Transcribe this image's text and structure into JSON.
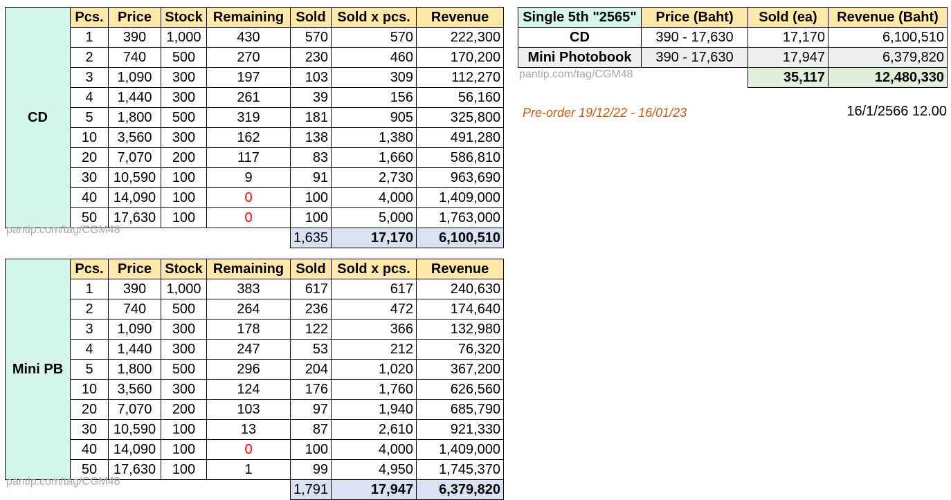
{
  "watermark": "pantip.com/tag/CGM48",
  "preorder_note": "Pre-order 19/12/22 - 16/01/23",
  "timestamp": "16/1/2566 12.00",
  "colors": {
    "header_bg": "#ffe8a9",
    "mint_bg": "#d5f6e8",
    "totals_bg": "#d9e1f2",
    "summary_totals_bg": "#e2efda",
    "gray_row_bg": "#efefef",
    "red_text": "#ff0000",
    "preorder_text": "#c55a11",
    "watermark_text": "#a9a9a9"
  },
  "detail_columns": [
    "Pcs.",
    "Price",
    "Stock",
    "Remaining",
    "Sold",
    "Sold x pcs.",
    "Revenue"
  ],
  "detail_tables": [
    {
      "label": "CD",
      "rows": [
        [
          "1",
          "390",
          "1,000",
          "430",
          "570",
          "570",
          "222,300"
        ],
        [
          "2",
          "740",
          "500",
          "270",
          "230",
          "460",
          "170,200"
        ],
        [
          "3",
          "1,090",
          "300",
          "197",
          "103",
          "309",
          "112,270"
        ],
        [
          "4",
          "1,440",
          "300",
          "261",
          "39",
          "156",
          "56,160"
        ],
        [
          "5",
          "1,800",
          "500",
          "319",
          "181",
          "905",
          "325,800"
        ],
        [
          "10",
          "3,560",
          "300",
          "162",
          "138",
          "1,380",
          "491,280"
        ],
        [
          "20",
          "7,070",
          "200",
          "117",
          "83",
          "1,660",
          "586,810"
        ],
        [
          "30",
          "10,590",
          "100",
          "9",
          "91",
          "2,730",
          "963,690"
        ],
        [
          "40",
          "14,090",
          "100",
          "0",
          "100",
          "4,000",
          "1,409,000"
        ],
        [
          "50",
          "17,630",
          "100",
          "0",
          "100",
          "5,000",
          "1,763,000"
        ]
      ],
      "red_remaining_rows": [
        8,
        9
      ],
      "totals": [
        "1,635",
        "17,170",
        "6,100,510"
      ]
    },
    {
      "label": "Mini PB",
      "rows": [
        [
          "1",
          "390",
          "1,000",
          "383",
          "617",
          "617",
          "240,630"
        ],
        [
          "2",
          "740",
          "500",
          "264",
          "236",
          "472",
          "174,640"
        ],
        [
          "3",
          "1,090",
          "300",
          "178",
          "122",
          "366",
          "132,980"
        ],
        [
          "4",
          "1,440",
          "300",
          "247",
          "53",
          "212",
          "76,320"
        ],
        [
          "5",
          "1,800",
          "500",
          "296",
          "204",
          "1,020",
          "367,200"
        ],
        [
          "10",
          "3,560",
          "300",
          "124",
          "176",
          "1,760",
          "626,560"
        ],
        [
          "20",
          "7,070",
          "200",
          "103",
          "97",
          "1,940",
          "685,790"
        ],
        [
          "30",
          "10,590",
          "100",
          "13",
          "87",
          "2,610",
          "921,330"
        ],
        [
          "40",
          "14,090",
          "100",
          "0",
          "100",
          "4,000",
          "1,409,000"
        ],
        [
          "50",
          "17,630",
          "100",
          "1",
          "99",
          "4,950",
          "1,745,370"
        ]
      ],
      "red_remaining_rows": [
        8
      ],
      "totals": [
        "1,791",
        "17,947",
        "6,379,820"
      ]
    }
  ],
  "summary_table": {
    "title": "Single 5th \"2565\"",
    "columns": [
      "Price (Baht)",
      "Sold (ea)",
      "Revenue (Baht)"
    ],
    "rows": [
      {
        "label": "CD",
        "price": "390 - 17,630",
        "sold": "17,170",
        "revenue": "6,100,510"
      },
      {
        "label": "Mini Photobook",
        "price": "390 - 17,630",
        "sold": "17,947",
        "revenue": "6,379,820"
      }
    ],
    "totals": {
      "sold": "35,117",
      "revenue": "12,480,330"
    }
  }
}
